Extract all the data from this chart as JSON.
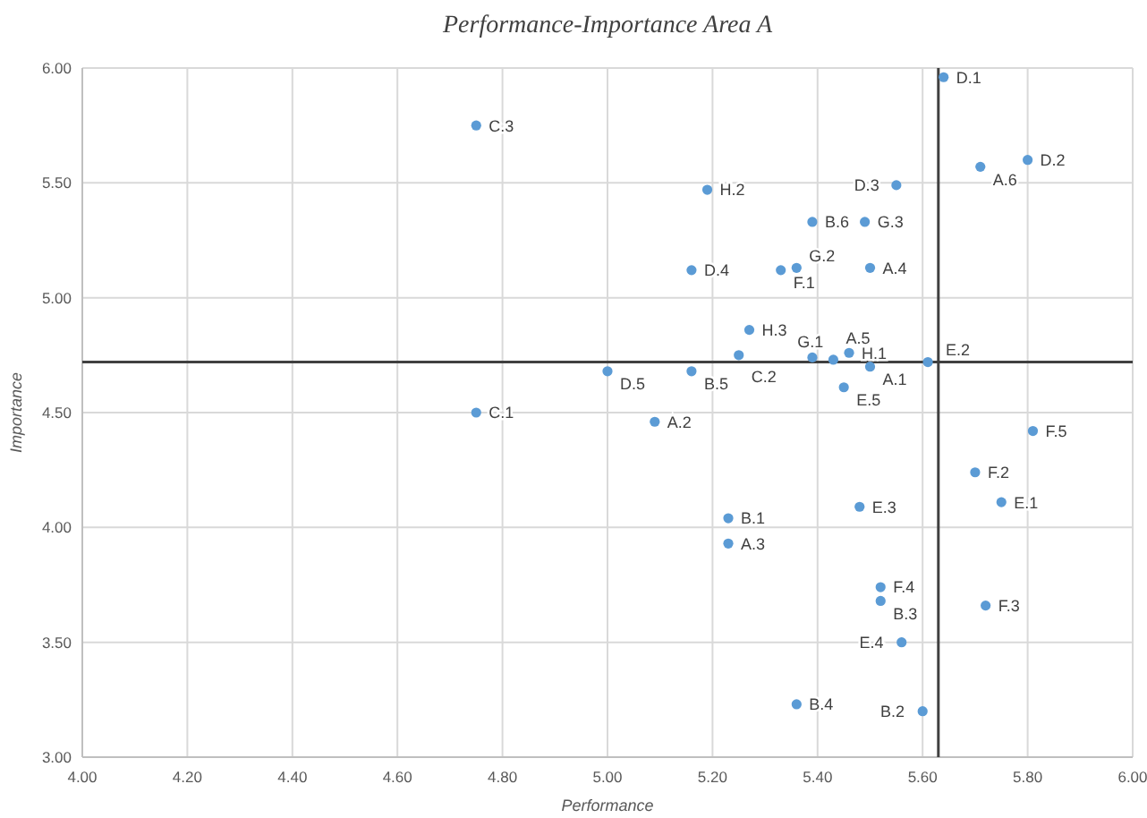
{
  "chart_data": {
    "type": "scatter",
    "title": "Performance-Importance Area A",
    "xlabel": "Performance",
    "ylabel": "Importance",
    "xlim": [
      4,
      6
    ],
    "ylim": [
      3,
      6
    ],
    "xticks": [
      {
        "value": 4,
        "label": "4.00"
      },
      {
        "value": 4.2,
        "label": "4.20"
      },
      {
        "value": 4.4,
        "label": "4.40"
      },
      {
        "value": 4.6,
        "label": "4.60"
      },
      {
        "value": 4.8,
        "label": "4.80"
      },
      {
        "value": 5,
        "label": "5.00"
      },
      {
        "value": 5.2,
        "label": "5.20"
      },
      {
        "value": 5.4,
        "label": "5.40"
      },
      {
        "value": 5.6,
        "label": "5.60"
      },
      {
        "value": 5.8,
        "label": "5.80"
      },
      {
        "value": 6,
        "label": "6.00"
      }
    ],
    "yticks": [
      {
        "value": 3,
        "label": "3.00"
      },
      {
        "value": 3.5,
        "label": "3.50"
      },
      {
        "value": 4,
        "label": "4.00"
      },
      {
        "value": 4.5,
        "label": "4.50"
      },
      {
        "value": 5,
        "label": "5.00"
      },
      {
        "value": 5.5,
        "label": "5.50"
      },
      {
        "value": 6,
        "label": "6.00"
      }
    ],
    "grid": true,
    "marker": "circle",
    "series": [
      {
        "color": "#5b9bd5",
        "x": [
          5.64,
          4.75,
          5.71,
          5.8,
          5.55,
          5.19,
          5.39,
          5.49,
          5.16,
          5.33,
          5.36,
          5.5,
          5.27,
          5.25,
          5.39,
          5.43,
          5.46,
          5.5,
          5.61,
          5.0,
          5.16,
          5.45,
          4.75,
          5.09,
          5.81,
          5.7,
          5.75,
          5.48,
          5.23,
          5.23,
          5.52,
          5.52,
          5.72,
          5.56,
          5.36,
          5.6
        ],
        "values": [
          5.96,
          5.75,
          5.57,
          5.6,
          5.49,
          5.47,
          5.33,
          5.33,
          5.12,
          5.12,
          5.13,
          5.13,
          4.86,
          4.75,
          4.74,
          4.73,
          4.76,
          4.7,
          4.72,
          4.68,
          4.68,
          4.61,
          4.5,
          4.46,
          4.42,
          4.24,
          4.11,
          4.09,
          4.04,
          3.93,
          3.74,
          3.68,
          3.66,
          3.5,
          3.23,
          3.2
        ],
        "value_labels": [
          "D.1",
          "C.3",
          "A.6",
          "D.2",
          "D.3",
          "H.2",
          "B.6",
          "G.3",
          "D.4",
          "F.1",
          "G.2",
          "A.4",
          "H.3",
          "C.2",
          "G.1",
          "A.5",
          "H.1",
          "A.1",
          "E.2",
          "D.5",
          "B.5",
          "E.5",
          "C.1",
          "A.2",
          "F.5",
          "F.2",
          "E.1",
          "E.3",
          "B.1",
          "A.3",
          "F.4",
          "B.3",
          "F.3",
          "E.4",
          "B.4",
          "B.2"
        ]
      }
    ],
    "ref_lines": [
      {
        "axis": "x",
        "value": 5.63,
        "color": "#404040"
      },
      {
        "axis": "y",
        "value": 4.72,
        "color": "#404040"
      }
    ]
  }
}
